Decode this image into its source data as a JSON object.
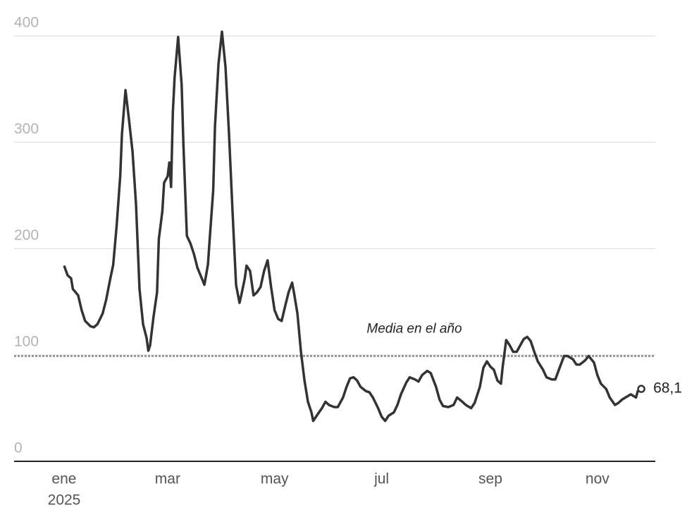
{
  "chart_data": {
    "type": "line",
    "x": [
      0,
      2,
      4,
      5,
      8,
      10,
      12,
      15,
      17,
      19,
      22,
      24,
      26,
      28,
      30,
      32,
      33,
      35,
      37,
      39,
      41,
      43,
      45,
      47,
      48,
      49,
      51,
      53,
      54,
      56,
      57,
      59,
      60,
      61,
      62,
      63,
      65,
      67,
      68,
      70,
      72,
      74,
      76,
      78,
      80,
      82,
      83,
      85,
      86,
      88,
      90,
      92,
      94,
      96,
      98,
      100,
      101,
      103,
      104,
      106,
      108,
      110,
      112,
      114,
      116,
      118,
      120,
      122,
      124,
      126,
      128,
      130,
      131,
      133,
      135,
      137,
      139,
      141,
      142,
      144,
      147,
      149,
      151,
      154,
      156,
      159,
      161,
      163,
      165,
      167,
      169,
      172,
      174,
      176,
      179,
      181,
      183,
      185,
      188,
      190,
      192,
      195,
      197,
      200,
      202,
      204,
      207,
      209,
      212,
      214,
      216,
      219,
      222,
      224,
      227,
      229,
      232,
      234,
      237,
      239,
      241,
      243,
      245,
      247,
      249,
      250,
      252,
      254,
      256,
      258,
      260,
      262,
      264,
      266,
      268,
      270,
      273,
      275,
      278,
      280,
      282,
      285,
      287,
      290,
      292,
      294,
      297,
      299,
      302,
      304,
      306,
      309,
      311,
      314,
      316,
      318,
      321,
      323,
      326,
      327,
      329
    ],
    "series": [
      {
        "name": "Serie",
        "color": "#333333",
        "values": [
          184,
          175,
          172,
          162,
          156,
          142,
          132,
          127,
          126,
          129,
          139,
          152,
          169,
          185,
          222,
          268,
          308,
          349,
          321,
          291,
          242,
          162,
          129,
          116,
          104,
          109,
          136,
          159,
          209,
          235,
          262,
          268,
          281,
          258,
          328,
          361,
          399,
          354,
          298,
          212,
          205,
          195,
          182,
          174,
          166,
          185,
          209,
          255,
          315,
          374,
          404,
          371,
          308,
          235,
          166,
          149,
          156,
          172,
          184,
          179,
          156,
          159,
          164,
          179,
          189,
          164,
          142,
          134,
          132,
          146,
          159,
          168,
          159,
          139,
          103,
          76,
          56,
          46,
          38,
          43,
          50,
          56,
          53,
          51,
          51,
          60,
          70,
          78,
          79,
          76,
          70,
          66,
          65,
          60,
          50,
          42,
          38,
          43,
          46,
          53,
          63,
          74,
          79,
          77,
          75,
          81,
          85,
          83,
          70,
          58,
          52,
          51,
          53,
          60,
          56,
          53,
          50,
          55,
          70,
          88,
          94,
          89,
          86,
          76,
          73,
          89,
          114,
          109,
          103,
          103,
          109,
          115,
          117,
          113,
          103,
          94,
          86,
          79,
          77,
          77,
          86,
          99,
          99,
          96,
          91,
          91,
          95,
          99,
          93,
          81,
          73,
          68,
          60,
          53,
          55,
          58,
          61,
          63,
          60,
          66,
          68.1
        ]
      }
    ],
    "end_label": "68,1",
    "xlim": [
      -28.5,
      337
    ],
    "xticks": [
      {
        "value": 0,
        "label": "ene"
      },
      {
        "value": 59,
        "label": "mar"
      },
      {
        "value": 120,
        "label": "may"
      },
      {
        "value": 181,
        "label": "jul"
      },
      {
        "value": 243,
        "label": "sep"
      },
      {
        "value": 304,
        "label": "nov"
      }
    ],
    "year_label": "2025",
    "ylim": [
      0,
      400
    ],
    "yticks": [
      0,
      100,
      200,
      300,
      400
    ],
    "grid": true,
    "mean_line": {
      "label": "Media en el año",
      "value": 99
    }
  }
}
